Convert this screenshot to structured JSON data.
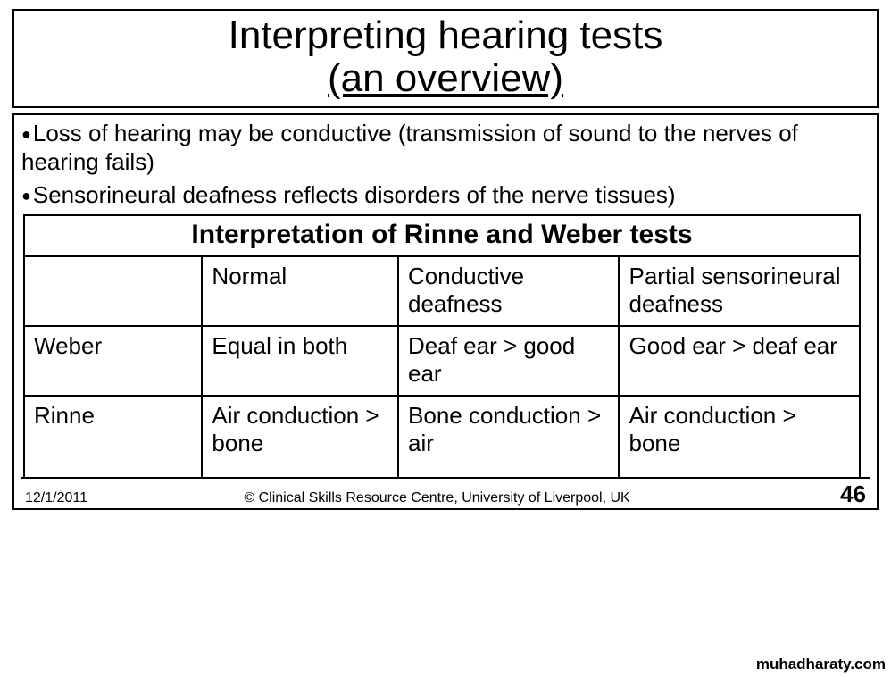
{
  "title": {
    "line1": "Interpreting hearing tests",
    "line2": "(an overview)"
  },
  "bullets": [
    "Loss of hearing may be conductive (transmission of sound to the nerves of hearing fails)",
    "Sensorineural deafness reflects disorders of the nerve tissues)"
  ],
  "table": {
    "title": "Interpretation of Rinne and Weber tests",
    "header": [
      "",
      "Normal",
      "Conductive deafness",
      "Partial sensorineural deafness"
    ],
    "rows": [
      [
        "Weber",
        "Equal in both",
        "Deaf ear > good ear",
        "Good ear > deaf ear"
      ],
      [
        "Rinne",
        "Air conduction > bone",
        "Bone conduction > air",
        "Air conduction > bone"
      ]
    ]
  },
  "footer": {
    "date": "12/1/2011",
    "center": "© Clinical Skills Resource Centre, University of Liverpool, UK",
    "page": "46"
  },
  "watermark": "muhadharaty.com",
  "colors": {
    "border": "#000000",
    "text": "#000000",
    "background": "#ffffff"
  },
  "typography": {
    "title_fontsize": 44,
    "body_fontsize": 26,
    "table_title_fontsize": 30,
    "footer_fontsize": 16,
    "page_number_fontsize": 26
  }
}
